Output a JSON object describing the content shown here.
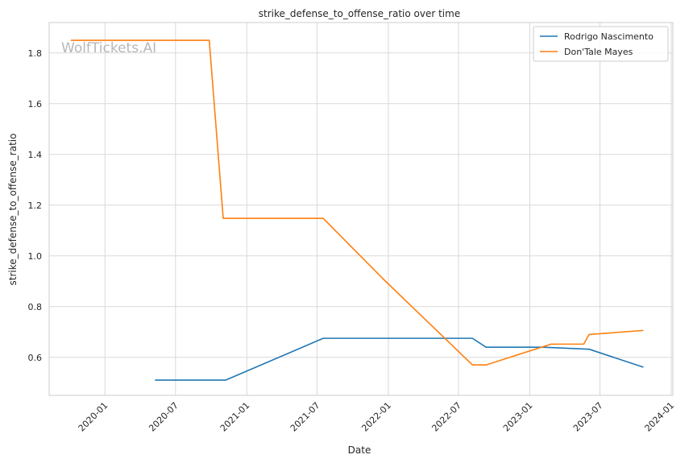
{
  "chart_data": {
    "type": "line",
    "title": "strike_defense_to_offense_ratio over time",
    "xlabel": "Date",
    "ylabel": "strike_defense_to_offense_ratio",
    "watermark": "WolfTickets.AI",
    "x_ticks": [
      "2020-01",
      "2020-07",
      "2021-01",
      "2021-07",
      "2022-01",
      "2022-07",
      "2023-01",
      "2023-07",
      "2024-01"
    ],
    "y_ticks": [
      "0.6",
      "0.8",
      "1.0",
      "1.2",
      "1.4",
      "1.6",
      "1.8"
    ],
    "xlim": [
      "2019-08-10",
      "2024-01-05"
    ],
    "ylim": [
      0.45,
      1.92
    ],
    "grid": true,
    "legend_position": "top-right",
    "series": [
      {
        "name": "Rodrigo Nascimento",
        "color": "#1f77b4",
        "points": [
          [
            "2020-05-09",
            0.51
          ],
          [
            "2020-11-07",
            0.51
          ],
          [
            "2021-07-17",
            0.675
          ],
          [
            "2022-08-06",
            0.675
          ],
          [
            "2022-09-10",
            0.64
          ],
          [
            "2023-02-04",
            0.64
          ],
          [
            "2023-06-03",
            0.632
          ],
          [
            "2023-10-21",
            0.561
          ]
        ]
      },
      {
        "name": "Don'Tale Mayes",
        "color": "#ff7f0e",
        "points": [
          [
            "2019-10-05",
            1.85
          ],
          [
            "2020-09-26",
            1.85
          ],
          [
            "2020-11-01",
            1.148
          ],
          [
            "2021-07-17",
            1.148
          ],
          [
            "2021-12-18",
            0.91
          ],
          [
            "2022-08-06",
            0.57
          ],
          [
            "2022-09-10",
            0.57
          ],
          [
            "2023-02-25",
            0.652
          ],
          [
            "2023-05-20",
            0.652
          ],
          [
            "2023-06-03",
            0.69
          ],
          [
            "2023-10-21",
            0.706
          ]
        ]
      }
    ]
  }
}
